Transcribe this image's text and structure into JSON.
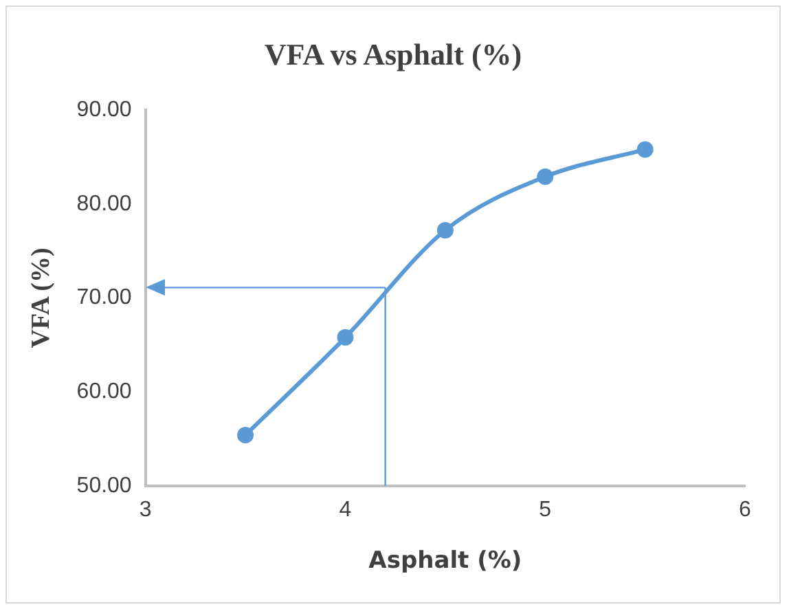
{
  "chart_data": {
    "type": "line",
    "title": "VFA vs Asphalt (%)",
    "xlabel": "Asphalt (%)",
    "ylabel": "VFA (%)",
    "x": [
      3.5,
      4,
      4.5,
      5,
      5.5
    ],
    "series": [
      {
        "color": "#5b9bd5",
        "values": [
          55.4,
          65.8,
          77.2,
          82.9,
          85.8
        ]
      }
    ],
    "xlim": [
      3,
      6
    ],
    "xticks": [
      3,
      4,
      5,
      6
    ],
    "ylim": [
      50,
      90
    ],
    "yticks": [
      {
        "value": 50,
        "label": "50.00"
      },
      {
        "value": 60,
        "label": "60.00"
      },
      {
        "value": 70,
        "label": "70.00"
      },
      {
        "value": 80,
        "label": "80.00"
      },
      {
        "value": 90,
        "label": "90.00"
      }
    ],
    "ref_lines": [
      {
        "axis": "x",
        "value": 4.2,
        "color": "#5b9bd5"
      },
      {
        "axis": "y",
        "value": 71.1,
        "color": "#5b9bd5"
      }
    ],
    "grid": false,
    "legend": false,
    "marker": "circle",
    "line_style": "solid"
  }
}
